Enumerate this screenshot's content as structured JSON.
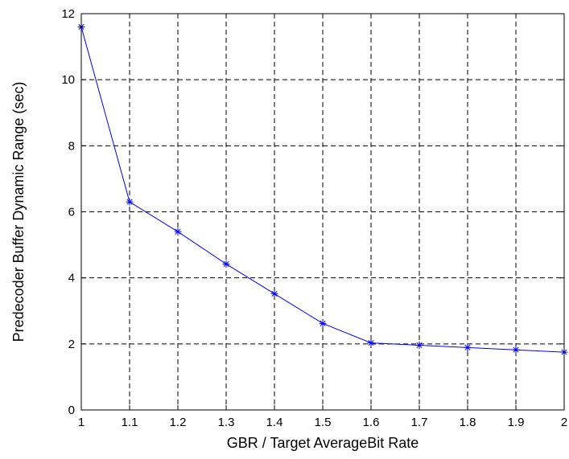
{
  "chart_data": {
    "type": "line",
    "title": "",
    "xlabel": "GBR / Target AverageBit Rate",
    "ylabel": "Predecoder Buffer Dynamic Range (sec)",
    "xlim": [
      1,
      2
    ],
    "ylim": [
      0,
      12
    ],
    "x_ticks": [
      "1",
      "1.1",
      "1.2",
      "1.3",
      "1.4",
      "1.5",
      "1.6",
      "1.7",
      "1.8",
      "1.9",
      "2"
    ],
    "y_ticks": [
      "0",
      "2",
      "4",
      "6",
      "8",
      "10",
      "12"
    ],
    "grid": true,
    "grid_style": "dashed",
    "series": [
      {
        "color": "#0000ff",
        "marker": "asterisk",
        "x": [
          1.0,
          1.1,
          1.2,
          1.3,
          1.4,
          1.5,
          1.6,
          1.7,
          1.8,
          1.9,
          2.0
        ],
        "y": [
          11.6,
          6.3,
          5.4,
          4.42,
          3.52,
          2.62,
          2.03,
          1.96,
          1.89,
          1.82,
          1.75
        ]
      }
    ]
  }
}
